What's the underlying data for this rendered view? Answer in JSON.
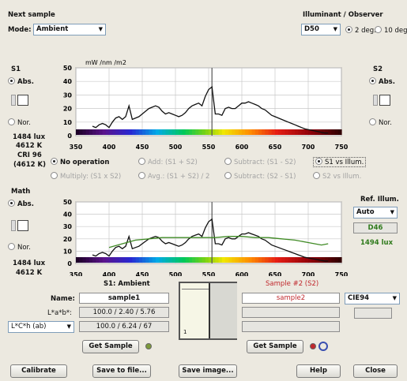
{
  "top": {
    "next_sample_label": "Next sample",
    "mode_label": "Mode:",
    "mode_value": "Ambient",
    "illuminant_label": "Illuminant / Observer",
    "illuminant_value": "D50",
    "observer_2deg": "2 deg.",
    "observer_10deg": "10 deg."
  },
  "s1_panel": {
    "title": "S1",
    "abs": "Abs.",
    "nor": "Nor.",
    "lux": "1484 lux",
    "cct": "4612 K",
    "cri": "CRI 96",
    "cct2": "(4612 K)"
  },
  "s2_panel": {
    "title": "S2",
    "abs": "Abs.",
    "nor": "Nor."
  },
  "operations": {
    "no_operation": "No operation",
    "add": "Add: (S1 + S2)",
    "subtract1": "Subtract: (S1 - S2)",
    "s1_vs_illum": "S1 vs Illum.",
    "multiply": "Multiply: (S1 x S2)",
    "avg": "Avg.: (S1 + S2) / 2",
    "subtract2": "Subtract: (S2 - S1)",
    "s2_vs_illum": "S2 vs Illum."
  },
  "math_panel": {
    "title": "Math",
    "abs": "Abs.",
    "nor": "Nor.",
    "lux": "1484 lux",
    "cct": "4612 K"
  },
  "ref_illum": {
    "label": "Ref. Illum.",
    "value": "Auto",
    "illuminant": "D46",
    "lux": "1494 lux"
  },
  "samples": {
    "s1_header": "S1: Ambient",
    "s2_header": "Sample #2 (S2)",
    "name_label": "Name:",
    "s1_name": "sample1",
    "s2_name": "sample2",
    "lab_label": "L*a*b*:",
    "s1_lab": "100.0 / 2.40 / 5.76",
    "lch_select": "L*C*h (ab)",
    "s1_lch": "100.0 / 6.24 / 67",
    "get_sample": "Get Sample",
    "delta_select": "CIE94",
    "swatch_marker": "1"
  },
  "bottom": {
    "calibrate": "Calibrate",
    "save_file": "Save to file...",
    "save_image": "Save image...",
    "help": "Help",
    "close": "Close"
  },
  "colors": {
    "black_series": "#111111",
    "green_series": "#3f8a24",
    "s2_text": "#c0282d",
    "ref_text": "#2f7a1c"
  },
  "chart_data": [
    {
      "type": "line",
      "ylabel": "mW /nm /m2",
      "xlim": [
        350,
        750
      ],
      "ylim": [
        0,
        50
      ],
      "xticks": [
        350,
        400,
        450,
        500,
        550,
        600,
        650,
        700,
        750
      ],
      "yticks": [
        0,
        10,
        20,
        30,
        40,
        50
      ],
      "grid": true,
      "series": [
        {
          "x": [
            375,
            380,
            385,
            390,
            395,
            400,
            405,
            410,
            415,
            420,
            425,
            430,
            435,
            440,
            445,
            450,
            455,
            460,
            465,
            470,
            475,
            480,
            485,
            490,
            495,
            500,
            505,
            510,
            515,
            520,
            525,
            530,
            535,
            540,
            545,
            550,
            555,
            560,
            565,
            570,
            575,
            580,
            585,
            590,
            595,
            600,
            605,
            610,
            615,
            620,
            625,
            630,
            635,
            640,
            645,
            650,
            655,
            660,
            665,
            670,
            675,
            680,
            685,
            690,
            695,
            700,
            705,
            710,
            715,
            720,
            725,
            730
          ],
          "y": [
            7,
            6,
            8,
            9,
            8,
            6,
            10,
            13,
            14,
            12,
            14,
            22,
            12,
            13,
            14,
            16,
            18,
            20,
            21,
            22,
            21,
            18,
            16,
            17,
            16,
            15,
            14,
            15,
            17,
            20,
            22,
            23,
            24,
            22,
            29,
            34,
            36,
            16,
            16,
            15,
            20,
            21,
            20,
            20,
            22,
            24,
            24,
            25,
            24,
            23,
            22,
            20,
            19,
            17,
            15,
            14,
            13,
            12,
            11,
            10,
            9,
            8,
            7,
            6,
            5,
            4.5,
            4,
            3.5,
            3,
            2.5,
            2,
            2
          ]
        }
      ]
    },
    {
      "type": "line",
      "xlim": [
        350,
        750
      ],
      "ylim": [
        0,
        50
      ],
      "xticks": [
        350,
        400,
        450,
        500,
        550,
        600,
        650,
        700,
        750
      ],
      "yticks": [
        0,
        10,
        20,
        30,
        40,
        50
      ],
      "grid": true,
      "series": [
        {
          "x": [
            375,
            380,
            385,
            390,
            395,
            400,
            405,
            410,
            415,
            420,
            425,
            430,
            435,
            440,
            445,
            450,
            455,
            460,
            465,
            470,
            475,
            480,
            485,
            490,
            495,
            500,
            505,
            510,
            515,
            520,
            525,
            530,
            535,
            540,
            545,
            550,
            555,
            560,
            565,
            570,
            575,
            580,
            585,
            590,
            595,
            600,
            605,
            610,
            615,
            620,
            625,
            630,
            635,
            640,
            645,
            650,
            655,
            660,
            665,
            670,
            675,
            680,
            685,
            690,
            695,
            700,
            705,
            710,
            715,
            720,
            725,
            730
          ],
          "y": [
            7,
            6,
            8,
            9,
            8,
            6,
            10,
            13,
            14,
            12,
            14,
            22,
            12,
            13,
            14,
            16,
            18,
            20,
            21,
            22,
            21,
            18,
            16,
            17,
            16,
            15,
            14,
            15,
            17,
            20,
            22,
            23,
            24,
            22,
            29,
            34,
            36,
            16,
            16,
            15,
            20,
            21,
            20,
            20,
            22,
            24,
            24,
            25,
            24,
            23,
            22,
            20,
            19,
            17,
            15,
            14,
            13,
            12,
            11,
            10,
            9,
            8,
            7,
            6,
            5,
            4.5,
            4,
            3.5,
            3,
            2.5,
            2,
            2
          ]
        },
        {
          "x": [
            400,
            420,
            440,
            460,
            480,
            500,
            520,
            540,
            560,
            580,
            600,
            620,
            640,
            660,
            680,
            700,
            720,
            730
          ],
          "y": [
            13,
            16,
            19,
            20,
            21,
            21,
            21,
            21,
            21,
            22,
            22,
            21,
            21,
            20,
            19,
            17,
            15,
            16
          ]
        }
      ]
    }
  ]
}
